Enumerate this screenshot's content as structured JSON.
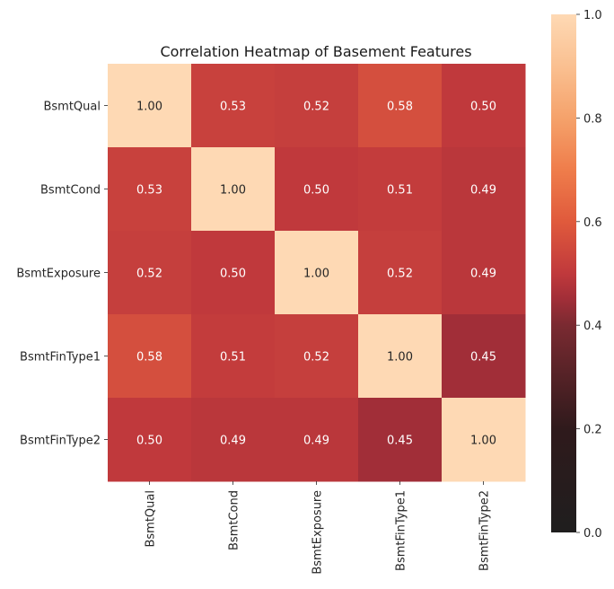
{
  "chart_data": {
    "type": "heatmap",
    "title": "Correlation Heatmap of Basement Features",
    "x_categories": [
      "BsmtQual",
      "BsmtCond",
      "BsmtExposure",
      "BsmtFinType1",
      "BsmtFinType2"
    ],
    "y_categories": [
      "BsmtQual",
      "BsmtCond",
      "BsmtExposure",
      "BsmtFinType1",
      "BsmtFinType2"
    ],
    "values": [
      [
        1.0,
        0.53,
        0.52,
        0.58,
        0.5
      ],
      [
        0.53,
        1.0,
        0.5,
        0.51,
        0.49
      ],
      [
        0.52,
        0.5,
        1.0,
        0.52,
        0.49
      ],
      [
        0.58,
        0.51,
        0.52,
        1.0,
        0.45
      ],
      [
        0.5,
        0.49,
        0.49,
        0.45,
        1.0
      ]
    ],
    "value_format": "2 decimals",
    "color_scale": {
      "name": "icefire-style diverging (dark center to light peach)",
      "min": 0.0,
      "max": 1.0,
      "ticks": [
        0.0,
        0.2,
        0.4,
        0.6,
        0.8,
        1.0
      ],
      "tick_labels": [
        "0.0",
        "0.2",
        "0.4",
        "0.6",
        "0.8",
        "1.0"
      ]
    },
    "colorbar_position": "right"
  }
}
